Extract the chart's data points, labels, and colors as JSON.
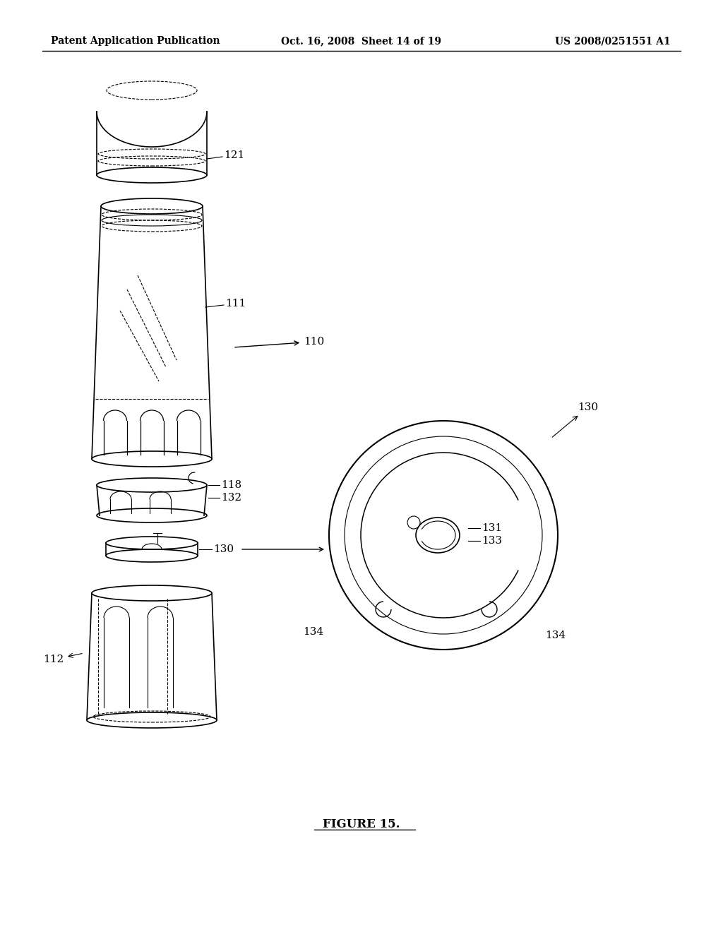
{
  "bg_color": "#ffffff",
  "header_left": "Patent Application Publication",
  "header_mid": "Oct. 16, 2008  Sheet 14 of 19",
  "header_right": "US 2008/0251551 A1",
  "figure_label": "FIGURE 15.",
  "lw": 1.2,
  "lw_thick": 1.5,
  "fontsize_header": 10,
  "fontsize_label": 11,
  "fontsize_figure": 12
}
